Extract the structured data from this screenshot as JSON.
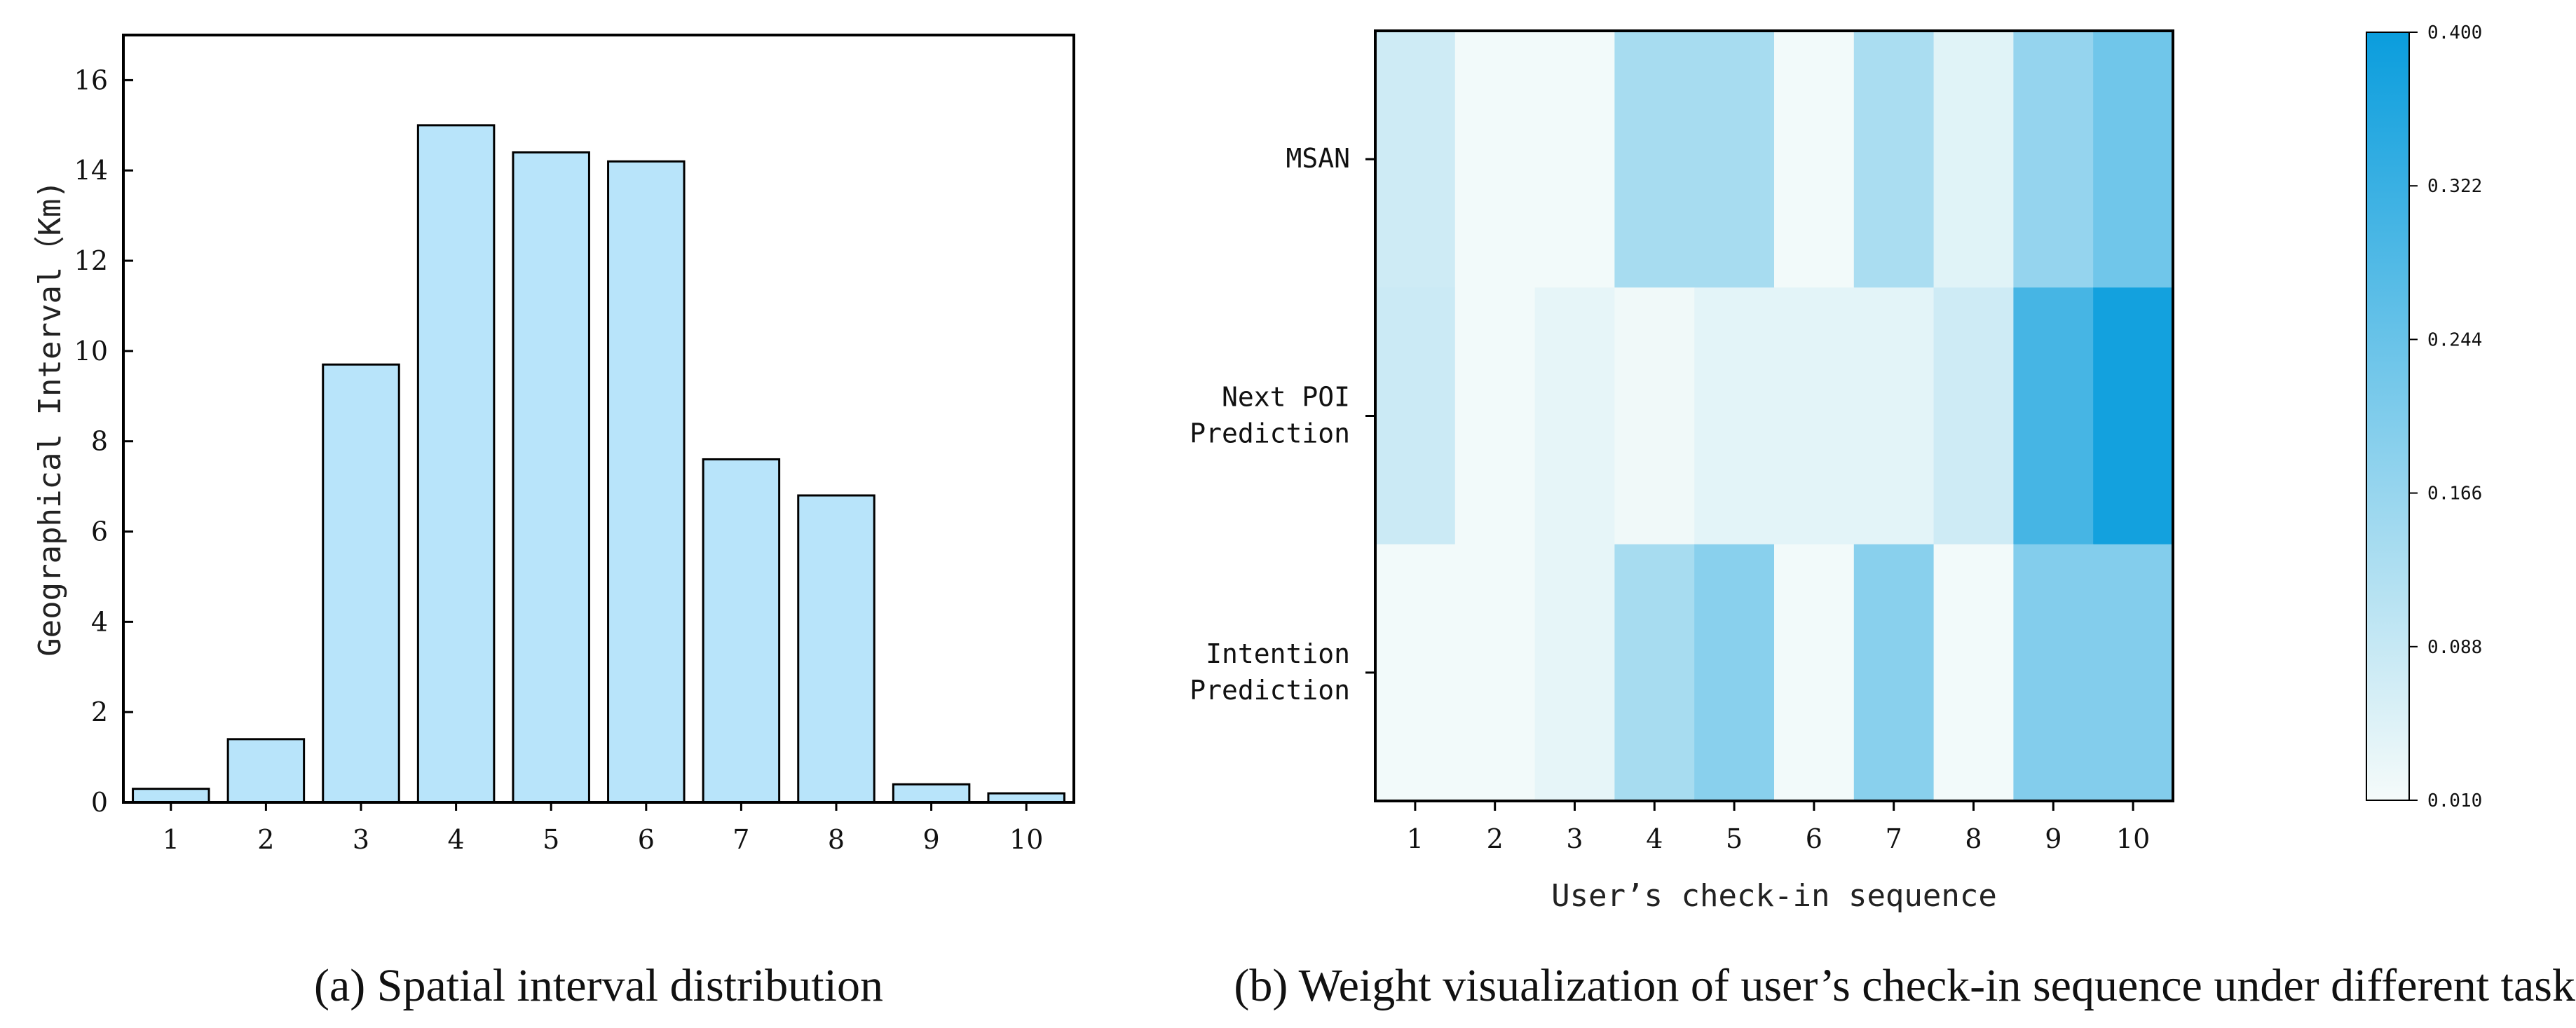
{
  "chart_data": [
    {
      "type": "bar",
      "ylabel": "Geographical Interval（Km)",
      "xlabel": "",
      "categories": [
        "1",
        "2",
        "3",
        "4",
        "5",
        "6",
        "7",
        "8",
        "9",
        "10"
      ],
      "values": [
        0.3,
        1.4,
        9.7,
        15.0,
        14.4,
        14.2,
        7.6,
        6.8,
        0.4,
        0.2
      ],
      "ylim": [
        0,
        17
      ],
      "yticks": [
        "0",
        "2",
        "4",
        "6",
        "8",
        "10",
        "12",
        "14",
        "16"
      ],
      "bar_color": "#b8e4fa",
      "caption": "(a) Spatial interval distribution"
    },
    {
      "type": "heatmap",
      "xlabel": "User’s check-in sequence",
      "x": [
        "1",
        "2",
        "3",
        "4",
        "5",
        "6",
        "7",
        "8",
        "9",
        "10"
      ],
      "rows": [
        {
          "label_lines": [
            "MSAN"
          ],
          "values": [
            0.075,
            0.015,
            0.015,
            0.14,
            0.14,
            0.015,
            0.135,
            0.045,
            0.17,
            0.23
          ]
        },
        {
          "label_lines": [
            "Next POI",
            "Prediction"
          ],
          "values": [
            0.08,
            0.015,
            0.035,
            0.018,
            0.04,
            0.04,
            0.04,
            0.075,
            0.3,
            0.385
          ]
        },
        {
          "label_lines": [
            "Intention",
            "Prediction"
          ],
          "values": [
            0.015,
            0.015,
            0.035,
            0.14,
            0.19,
            0.015,
            0.19,
            0.015,
            0.2,
            0.2
          ]
        }
      ],
      "colorbar": {
        "min": 0.01,
        "max": 0.4,
        "ticks": [
          "0.400",
          "0.322",
          "0.244",
          "0.166",
          "0.088",
          "0.010"
        ],
        "color_low": "#f5fbfa",
        "color_high": "#0a9ddd"
      },
      "caption": "(b) Weight visualization of user’s check-in sequence under different tasks"
    }
  ]
}
